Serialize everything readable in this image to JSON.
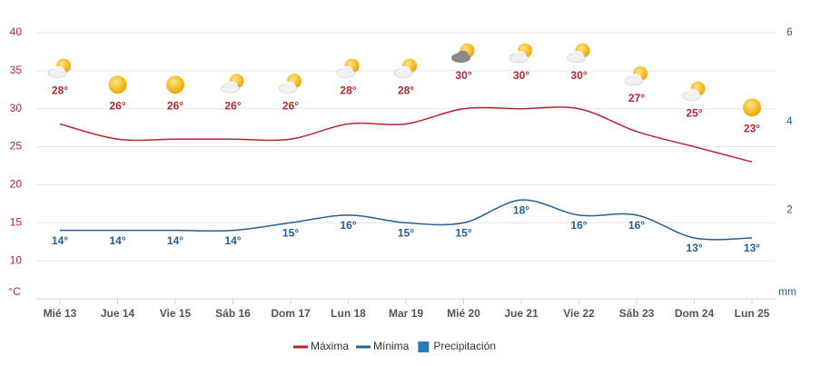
{
  "chart_data": {
    "type": "line",
    "y_label": "°C",
    "y2_label": "mm",
    "categories": [
      "Mié 13",
      "Jue 14",
      "Vie 15",
      "Sáb 16",
      "Dom 17",
      "Lun 18",
      "Mar 19",
      "Mié 20",
      "Jue 21",
      "Vie 22",
      "Sáb 23",
      "Dom 24",
      "Lun 25"
    ],
    "series": [
      {
        "name": "Máxima",
        "color": "#b5272d",
        "values": [
          28,
          26,
          26,
          26,
          26,
          28,
          28,
          30,
          30,
          30,
          27,
          25,
          23
        ],
        "value_labels": [
          "28°",
          "26°",
          "26°",
          "26°",
          "26°",
          "28°",
          "28°",
          "30°",
          "30°",
          "30°",
          "27°",
          "25°",
          "23°"
        ]
      },
      {
        "name": "Mínima",
        "color": "#245f98",
        "values": [
          14,
          14,
          14,
          14,
          15,
          16,
          15,
          15,
          18,
          16,
          16,
          13,
          13
        ],
        "value_labels": [
          "14°",
          "14°",
          "14°",
          "14°",
          "15°",
          "16°",
          "15°",
          "15°",
          "18°",
          "16°",
          "16°",
          "13°",
          "13°"
        ]
      },
      {
        "name": "Precipitación",
        "color": "#2b7bbf",
        "axis": "y2",
        "values": [
          0,
          0,
          0,
          0,
          0,
          0,
          0,
          0,
          0,
          0,
          0,
          0,
          0
        ]
      }
    ],
    "ylim": [
      5,
      40
    ],
    "yticks": [
      10,
      15,
      20,
      25,
      30,
      35,
      40
    ],
    "y2lim": [
      0,
      6
    ],
    "y2ticks": [
      2,
      4,
      6
    ],
    "grid": true,
    "legend": "bottom"
  }
}
